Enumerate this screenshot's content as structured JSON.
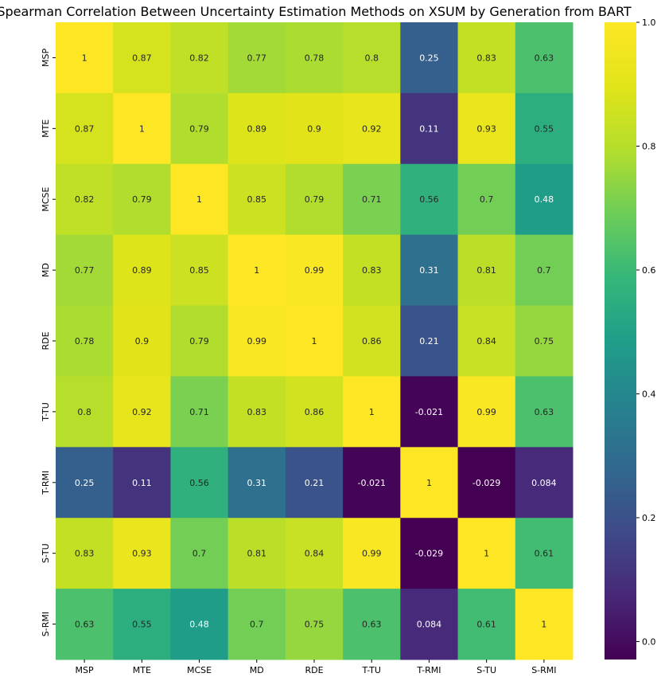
{
  "chart_data": {
    "type": "heatmap",
    "title": "Spearman Correlation Between Uncertainty Estimation Methods on XSUM by Generation from BART",
    "xlabels": [
      "MSP",
      "MTE",
      "MCSE",
      "MD",
      "RDE",
      "T-TU",
      "T-RMI",
      "S-TU",
      "S-RMI"
    ],
    "ylabels": [
      "MSP",
      "MTE",
      "MCSE",
      "MD",
      "RDE",
      "T-TU",
      "T-RMI",
      "S-TU",
      "S-RMI"
    ],
    "values": [
      [
        1,
        0.87,
        0.82,
        0.77,
        0.78,
        0.8,
        0.25,
        0.83,
        0.63
      ],
      [
        0.87,
        1,
        0.79,
        0.89,
        0.9,
        0.92,
        0.11,
        0.93,
        0.55
      ],
      [
        0.82,
        0.79,
        1,
        0.85,
        0.79,
        0.71,
        0.56,
        0.7,
        0.48
      ],
      [
        0.77,
        0.89,
        0.85,
        1,
        0.99,
        0.83,
        0.31,
        0.81,
        0.7
      ],
      [
        0.78,
        0.9,
        0.79,
        0.99,
        1,
        0.86,
        0.21,
        0.84,
        0.75
      ],
      [
        0.8,
        0.92,
        0.71,
        0.83,
        0.86,
        1,
        -0.021,
        0.99,
        0.63
      ],
      [
        0.25,
        0.11,
        0.56,
        0.31,
        0.21,
        -0.021,
        1,
        -0.029,
        0.084
      ],
      [
        0.83,
        0.93,
        0.7,
        0.81,
        0.84,
        0.99,
        -0.029,
        1,
        0.61
      ],
      [
        0.63,
        0.55,
        0.48,
        0.7,
        0.75,
        0.63,
        0.084,
        0.61,
        1
      ]
    ],
    "value_labels": [
      [
        "1",
        "0.87",
        "0.82",
        "0.77",
        "0.78",
        "0.8",
        "0.25",
        "0.83",
        "0.63"
      ],
      [
        "0.87",
        "1",
        "0.79",
        "0.89",
        "0.9",
        "0.92",
        "0.11",
        "0.93",
        "0.55"
      ],
      [
        "0.82",
        "0.79",
        "1",
        "0.85",
        "0.79",
        "0.71",
        "0.56",
        "0.7",
        "0.48"
      ],
      [
        "0.77",
        "0.89",
        "0.85",
        "1",
        "0.99",
        "0.83",
        "0.31",
        "0.81",
        "0.7"
      ],
      [
        "0.78",
        "0.9",
        "0.79",
        "0.99",
        "1",
        "0.86",
        "0.21",
        "0.84",
        "0.75"
      ],
      [
        "0.8",
        "0.92",
        "0.71",
        "0.83",
        "0.86",
        "1",
        "-0.021",
        "0.99",
        "0.63"
      ],
      [
        "0.25",
        "0.11",
        "0.56",
        "0.31",
        "0.21",
        "-0.021",
        "1",
        "-0.029",
        "0.084"
      ],
      [
        "0.83",
        "0.93",
        "0.7",
        "0.81",
        "0.84",
        "0.99",
        "-0.029",
        "1",
        "0.61"
      ],
      [
        "0.63",
        "0.55",
        "0.48",
        "0.7",
        "0.75",
        "0.63",
        "0.084",
        "0.61",
        "1"
      ]
    ],
    "colormap": "viridis",
    "vmin": -0.029,
    "vmax": 1,
    "colorbar_ticks": [
      0.0,
      0.2,
      0.4,
      0.6,
      0.8,
      1.0
    ],
    "colorbar_tick_labels": [
      "0.0",
      "0.2",
      "0.4",
      "0.6",
      "0.8",
      "1.0"
    ],
    "colorbar_placement": "right",
    "grid": false
  }
}
